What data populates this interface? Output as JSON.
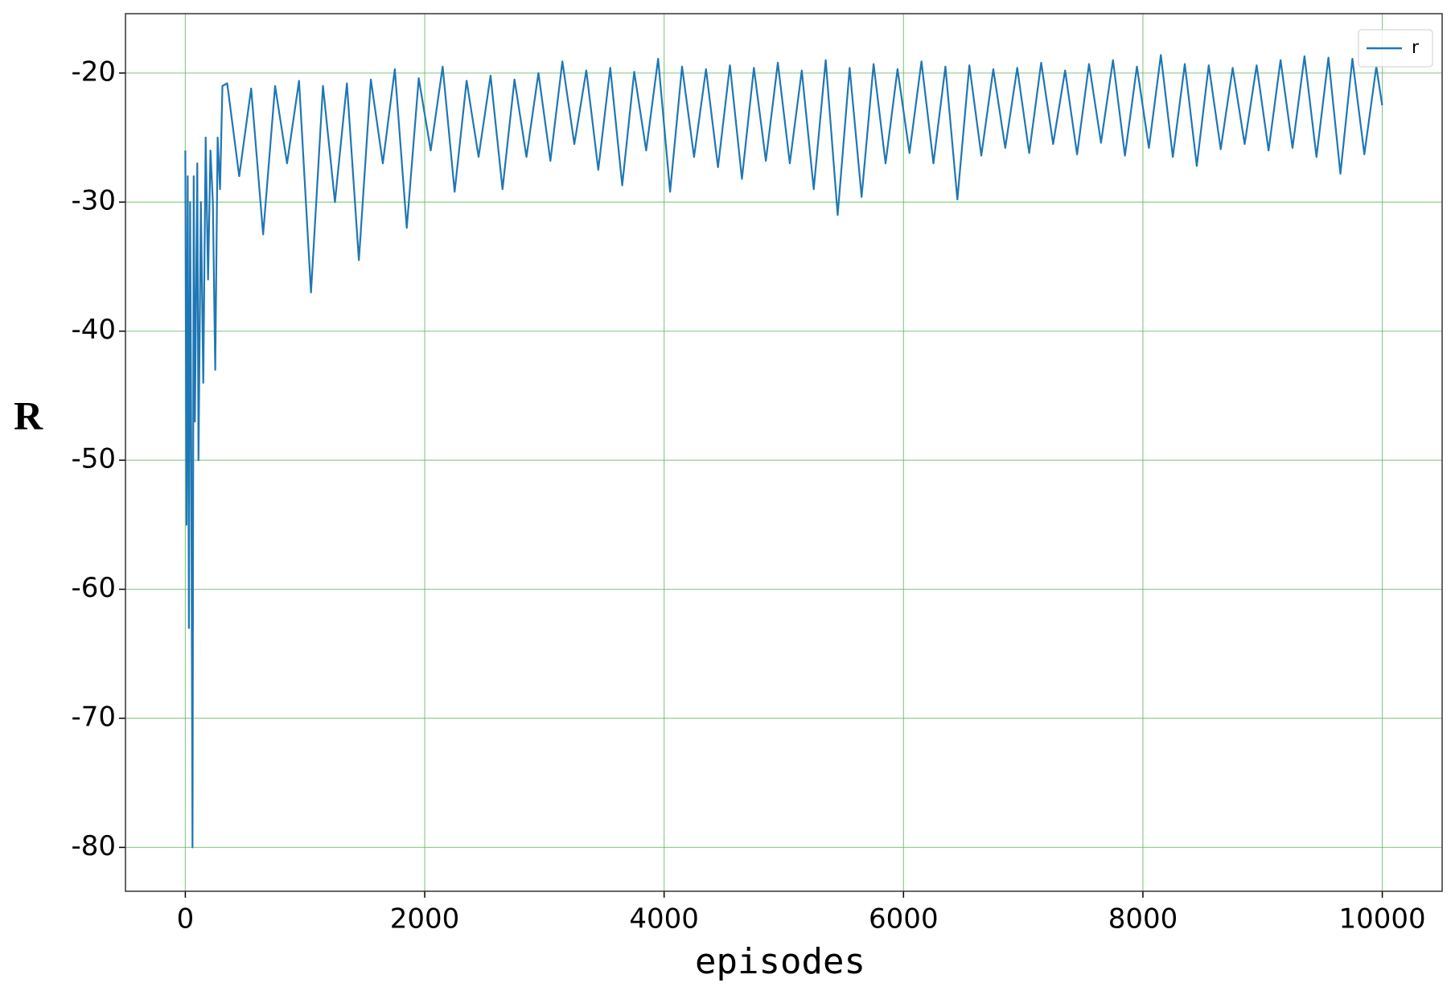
{
  "chart_data": {
    "type": "line",
    "x_label": "episodes",
    "y_label": "R",
    "xlim": [
      -500,
      10500
    ],
    "ylim": [
      -83.4,
      -15.4
    ],
    "xticks": [
      0,
      2000,
      4000,
      6000,
      8000,
      10000
    ],
    "yticks": [
      -80,
      -70,
      -60,
      -50,
      -40,
      -30,
      -20
    ],
    "grid": true,
    "grid_color": "#5cb85c",
    "legend": "upper right",
    "x": [
      0,
      10,
      20,
      30,
      40,
      50,
      60,
      70,
      80,
      100,
      110,
      130,
      150,
      170,
      190,
      210,
      230,
      250,
      270,
      290,
      310,
      350,
      450,
      550,
      650,
      750,
      850,
      950,
      1050,
      1150,
      1250,
      1350,
      1450,
      1550,
      1650,
      1750,
      1850,
      1950,
      2050,
      2150,
      2250,
      2350,
      2450,
      2550,
      2650,
      2750,
      2850,
      2950,
      3050,
      3150,
      3250,
      3350,
      3450,
      3550,
      3650,
      3750,
      3850,
      3950,
      4050,
      4150,
      4250,
      4350,
      4450,
      4550,
      4650,
      4750,
      4850,
      4950,
      5050,
      5150,
      5250,
      5350,
      5450,
      5550,
      5650,
      5750,
      5850,
      5950,
      6050,
      6150,
      6250,
      6350,
      6450,
      6550,
      6650,
      6750,
      6850,
      6950,
      7050,
      7150,
      7250,
      7350,
      7450,
      7550,
      7650,
      7750,
      7850,
      7950,
      8050,
      8150,
      8250,
      8350,
      8450,
      8550,
      8650,
      8750,
      8850,
      8950,
      9050,
      9150,
      9250,
      9350,
      9450,
      9550,
      9650,
      9750,
      9850,
      9950,
      9999
    ],
    "series": [
      {
        "name": "r",
        "color": "#1f77b4",
        "values": [
          -26,
          -55,
          -28,
          -63,
          -30,
          -50,
          -80,
          -28,
          -47,
          -27,
          -50,
          -30,
          -44,
          -25,
          -36,
          -26,
          -30,
          -43,
          -25,
          -29,
          -21,
          -20.8,
          -28,
          -21.2,
          -32.5,
          -21.0,
          -27,
          -20.6,
          -37,
          -21.0,
          -30,
          -20.8,
          -34.5,
          -20.5,
          -27,
          -19.7,
          -32,
          -20.4,
          -26,
          -19.5,
          -29.2,
          -20.6,
          -26.5,
          -20.2,
          -29,
          -20.5,
          -26.5,
          -20.0,
          -26.8,
          -19.1,
          -25.5,
          -19.8,
          -27.5,
          -19.6,
          -28.7,
          -19.9,
          -26,
          -18.9,
          -29.2,
          -19.5,
          -26.5,
          -19.7,
          -27.3,
          -19.4,
          -28.2,
          -19.6,
          -26.8,
          -19.2,
          -27,
          -19.8,
          -29,
          -19.0,
          -31,
          -19.6,
          -29.6,
          -19.3,
          -27,
          -19.7,
          -26.2,
          -19.1,
          -27,
          -19.5,
          -29.8,
          -19.4,
          -26.4,
          -19.7,
          -25.8,
          -19.6,
          -26.2,
          -19.2,
          -25.5,
          -19.8,
          -26.3,
          -19.3,
          -25.4,
          -19.0,
          -26.4,
          -19.5,
          -25.8,
          -18.6,
          -26.5,
          -19.3,
          -27.2,
          -19.4,
          -25.9,
          -19.6,
          -25.5,
          -19.4,
          -26,
          -19.0,
          -25.8,
          -18.7,
          -26.5,
          -18.8,
          -27.8,
          -18.9,
          -26.3,
          -19.5,
          -22.5
        ]
      }
    ]
  }
}
